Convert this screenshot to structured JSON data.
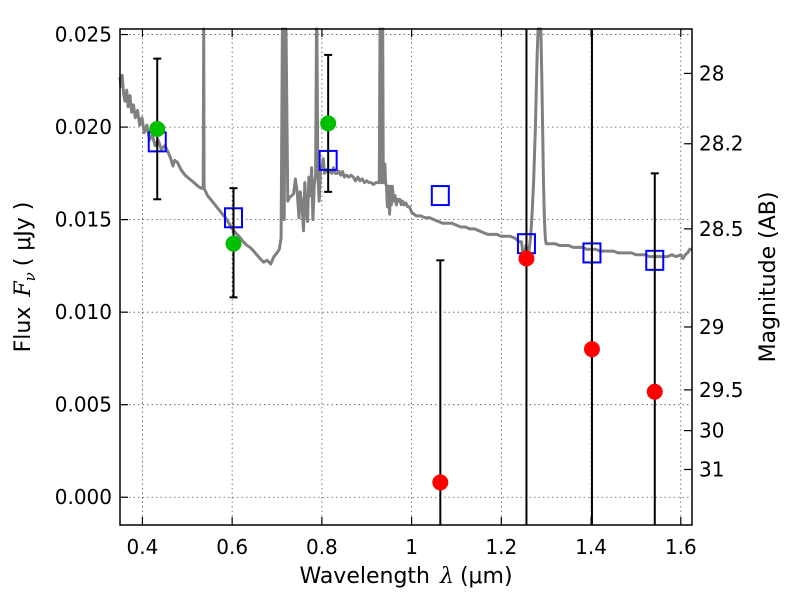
{
  "chart_data": {
    "type": "scatter",
    "xlabel": "Wavelength",
    "xlabel_symbol": "λ",
    "xlabel_unit": "(μm)",
    "ylabel": "Flux",
    "ylabel_symbol": "F",
    "ylabel_subscript": "ν",
    "ylabel_unit": "( μJy )",
    "ylabel_right": "Magnitude (AB)",
    "xlim": [
      0.35,
      1.625
    ],
    "ylim": [
      -0.0015,
      0.0253
    ],
    "grid": true,
    "x_ticks": [
      {
        "value": 0.4,
        "label": "0.4"
      },
      {
        "value": 0.6,
        "label": "0.6"
      },
      {
        "value": 0.8,
        "label": "0.8"
      },
      {
        "value": 1.0,
        "label": "1"
      },
      {
        "value": 1.2,
        "label": "1.2"
      },
      {
        "value": 1.4,
        "label": "1.4"
      },
      {
        "value": 1.6,
        "label": "1.6"
      }
    ],
    "y_ticks": [
      {
        "value": 0.0,
        "label": "0.000"
      },
      {
        "value": 0.005,
        "label": "0.005"
      },
      {
        "value": 0.01,
        "label": "0.010"
      },
      {
        "value": 0.015,
        "label": "0.015"
      },
      {
        "value": 0.02,
        "label": "0.020"
      },
      {
        "value": 0.025,
        "label": "0.025"
      }
    ],
    "right_ticks": [
      {
        "flux": 0.0229,
        "label": "28"
      },
      {
        "flux": 0.0191,
        "label": "28.2"
      },
      {
        "flux": 0.0145,
        "label": "28.5"
      },
      {
        "flux": 0.0092,
        "label": "29"
      },
      {
        "flux": 0.0058,
        "label": "29.5"
      },
      {
        "flux": 0.0036,
        "label": "30"
      },
      {
        "flux": 0.0015,
        "label": "31"
      }
    ],
    "series": [
      {
        "kind": "sed_model",
        "color": "#808080",
        "points": [
          [
            0.35,
            0.0227
          ],
          [
            0.352,
            0.0222
          ],
          [
            0.355,
            0.0228
          ],
          [
            0.358,
            0.0218
          ],
          [
            0.361,
            0.0214
          ],
          [
            0.365,
            0.022
          ],
          [
            0.368,
            0.0211
          ],
          [
            0.372,
            0.0217
          ],
          [
            0.376,
            0.0208
          ],
          [
            0.38,
            0.0212
          ],
          [
            0.384,
            0.0205
          ],
          [
            0.389,
            0.0209
          ],
          [
            0.394,
            0.0201
          ],
          [
            0.399,
            0.0205
          ],
          [
            0.404,
            0.0197
          ],
          [
            0.41,
            0.0201
          ],
          [
            0.416,
            0.0193
          ],
          [
            0.422,
            0.0196
          ],
          [
            0.428,
            0.019
          ],
          [
            0.435,
            0.0193
          ],
          [
            0.442,
            0.0188
          ],
          [
            0.45,
            0.019
          ],
          [
            0.458,
            0.0186
          ],
          [
            0.463,
            0.0183
          ],
          [
            0.468,
            0.0179
          ],
          [
            0.472,
            0.0182
          ],
          [
            0.478,
            0.0181
          ],
          [
            0.486,
            0.0177
          ],
          [
            0.495,
            0.0174
          ],
          [
            0.505,
            0.0172
          ],
          [
            0.515,
            0.017
          ],
          [
            0.524,
            0.0168
          ],
          [
            0.531,
            0.0167
          ],
          [
            0.5355,
            0.0167
          ],
          [
            0.5365,
            0.0253
          ],
          [
            0.5375,
            0.0167
          ],
          [
            0.545,
            0.0163
          ],
          [
            0.555,
            0.016
          ],
          [
            0.565,
            0.0157
          ],
          [
            0.575,
            0.0154
          ],
          [
            0.585,
            0.0151
          ],
          [
            0.593,
            0.0148
          ],
          [
            0.6,
            0.0145
          ],
          [
            0.607,
            0.0143
          ],
          [
            0.615,
            0.0141
          ],
          [
            0.625,
            0.0138
          ],
          [
            0.633,
            0.0136
          ],
          [
            0.64,
            0.0135
          ],
          [
            0.648,
            0.0133
          ],
          [
            0.655,
            0.0131
          ],
          [
            0.662,
            0.0129
          ],
          [
            0.67,
            0.0127
          ],
          [
            0.678,
            0.0128
          ],
          [
            0.686,
            0.0126
          ],
          [
            0.693,
            0.013
          ],
          [
            0.7,
            0.0132
          ],
          [
            0.705,
            0.0134
          ],
          [
            0.709,
            0.014
          ],
          [
            0.712,
            0.0253
          ],
          [
            0.7135,
            0.0253
          ],
          [
            0.716,
            0.015
          ],
          [
            0.718,
            0.0253
          ],
          [
            0.72,
            0.0253
          ],
          [
            0.724,
            0.016
          ],
          [
            0.728,
            0.0162
          ],
          [
            0.733,
            0.0163
          ],
          [
            0.737,
            0.0164
          ],
          [
            0.741,
            0.0172
          ],
          [
            0.745,
            0.0165
          ],
          [
            0.749,
            0.0151
          ],
          [
            0.752,
            0.0165
          ],
          [
            0.756,
            0.0157
          ],
          [
            0.759,
            0.0144
          ],
          [
            0.762,
            0.017
          ],
          [
            0.765,
            0.0155
          ],
          [
            0.768,
            0.0149
          ],
          [
            0.771,
            0.0173
          ],
          [
            0.774,
            0.0163
          ],
          [
            0.777,
            0.0178
          ],
          [
            0.78,
            0.015
          ],
          [
            0.783,
            0.0169
          ],
          [
            0.786,
            0.0174
          ],
          [
            0.788,
            0.0253
          ],
          [
            0.789,
            0.0253
          ],
          [
            0.791,
            0.0176
          ],
          [
            0.794,
            0.016
          ],
          [
            0.797,
            0.0177
          ],
          [
            0.8,
            0.0178
          ],
          [
            0.803,
            0.0183
          ],
          [
            0.806,
            0.0175
          ],
          [
            0.81,
            0.0177
          ],
          [
            0.814,
            0.0176
          ],
          [
            0.818,
            0.0176
          ],
          [
            0.822,
            0.0175
          ],
          [
            0.826,
            0.0178
          ],
          [
            0.83,
            0.0175
          ],
          [
            0.834,
            0.0175
          ],
          [
            0.838,
            0.0176
          ],
          [
            0.842,
            0.0174
          ],
          [
            0.846,
            0.0176
          ],
          [
            0.85,
            0.0173
          ],
          [
            0.855,
            0.0174
          ],
          [
            0.86,
            0.0173
          ],
          [
            0.865,
            0.0174
          ],
          [
            0.87,
            0.0173
          ],
          [
            0.875,
            0.0171
          ],
          [
            0.88,
            0.0173
          ],
          [
            0.885,
            0.0171
          ],
          [
            0.89,
            0.0172
          ],
          [
            0.895,
            0.017
          ],
          [
            0.9,
            0.0171
          ],
          [
            0.905,
            0.017
          ],
          [
            0.91,
            0.017
          ],
          [
            0.915,
            0.0169
          ],
          [
            0.92,
            0.017
          ],
          [
            0.925,
            0.017
          ],
          [
            0.928,
            0.017
          ],
          [
            0.9295,
            0.0253
          ],
          [
            0.931,
            0.017
          ],
          [
            0.934,
            0.017
          ],
          [
            0.9355,
            0.0253
          ],
          [
            0.937,
            0.017
          ],
          [
            0.939,
            0.017
          ],
          [
            0.9405,
            0.018
          ],
          [
            0.942,
            0.017
          ],
          [
            0.944,
            0.0168
          ],
          [
            0.946,
            0.0157
          ],
          [
            0.948,
            0.0168
          ],
          [
            0.951,
            0.0153
          ],
          [
            0.953,
            0.0168
          ],
          [
            0.955,
            0.0158
          ],
          [
            0.957,
            0.0168
          ],
          [
            0.96,
            0.016
          ],
          [
            0.963,
            0.0163
          ],
          [
            0.966,
            0.0158
          ],
          [
            0.969,
            0.0161
          ],
          [
            0.971,
            0.016
          ],
          [
            0.974,
            0.0161
          ],
          [
            0.977,
            0.0158
          ],
          [
            0.98,
            0.016
          ],
          [
            0.983,
            0.0158
          ],
          [
            0.987,
            0.0159
          ],
          [
            0.991,
            0.0157
          ],
          [
            0.995,
            0.0157
          ],
          [
            1.0,
            0.0154
          ],
          [
            1.01,
            0.0152
          ],
          [
            1.02,
            0.0152
          ],
          [
            1.03,
            0.0151
          ],
          [
            1.04,
            0.0151
          ],
          [
            1.05,
            0.015
          ],
          [
            1.06,
            0.0149
          ],
          [
            1.07,
            0.0148
          ],
          [
            1.08,
            0.0148
          ],
          [
            1.09,
            0.0148
          ],
          [
            1.1,
            0.0147
          ],
          [
            1.11,
            0.0146
          ],
          [
            1.12,
            0.0146
          ],
          [
            1.13,
            0.0145
          ],
          [
            1.14,
            0.0145
          ],
          [
            1.15,
            0.0144
          ],
          [
            1.16,
            0.0143
          ],
          [
            1.17,
            0.0142
          ],
          [
            1.18,
            0.0142
          ],
          [
            1.19,
            0.0142
          ],
          [
            1.2,
            0.0141
          ],
          [
            1.21,
            0.0141
          ],
          [
            1.22,
            0.0141
          ],
          [
            1.23,
            0.014
          ],
          [
            1.24,
            0.0138
          ],
          [
            1.245,
            0.0138
          ],
          [
            1.25,
            0.0128
          ],
          [
            1.255,
            0.0136
          ],
          [
            1.26,
            0.013
          ],
          [
            1.265,
            0.014
          ],
          [
            1.268,
            0.015
          ],
          [
            1.27,
            0.016
          ],
          [
            1.272,
            0.017
          ],
          [
            1.274,
            0.0185
          ],
          [
            1.276,
            0.02
          ],
          [
            1.278,
            0.022
          ],
          [
            1.28,
            0.024
          ],
          [
            1.282,
            0.0253
          ],
          [
            1.288,
            0.0253
          ],
          [
            1.29,
            0.023
          ],
          [
            1.292,
            0.02
          ],
          [
            1.294,
            0.017
          ],
          [
            1.296,
            0.015
          ],
          [
            1.298,
            0.014
          ],
          [
            1.3,
            0.0137
          ],
          [
            1.31,
            0.0137
          ],
          [
            1.32,
            0.0137
          ],
          [
            1.33,
            0.0136
          ],
          [
            1.34,
            0.0136
          ],
          [
            1.35,
            0.0136
          ],
          [
            1.36,
            0.0135
          ],
          [
            1.37,
            0.0135
          ],
          [
            1.38,
            0.0135
          ],
          [
            1.39,
            0.0134
          ],
          [
            1.4,
            0.0134
          ],
          [
            1.41,
            0.0134
          ],
          [
            1.42,
            0.0133
          ],
          [
            1.43,
            0.0133
          ],
          [
            1.44,
            0.0133
          ],
          [
            1.45,
            0.0133
          ],
          [
            1.46,
            0.0132
          ],
          [
            1.47,
            0.0132
          ],
          [
            1.48,
            0.0132
          ],
          [
            1.49,
            0.0132
          ],
          [
            1.5,
            0.0131
          ],
          [
            1.51,
            0.0131
          ],
          [
            1.52,
            0.0131
          ],
          [
            1.53,
            0.013
          ],
          [
            1.54,
            0.013
          ],
          [
            1.55,
            0.013
          ],
          [
            1.56,
            0.013
          ],
          [
            1.57,
            0.013
          ],
          [
            1.58,
            0.0131
          ],
          [
            1.59,
            0.013
          ],
          [
            1.6,
            0.0131
          ],
          [
            1.605,
            0.0129
          ],
          [
            1.61,
            0.0131
          ],
          [
            1.615,
            0.0132
          ],
          [
            1.62,
            0.0134
          ],
          [
            1.625,
            0.0134
          ]
        ]
      },
      {
        "kind": "model_photometry",
        "marker": "open-square",
        "color": "#0000ff",
        "x": [
          0.433,
          0.603,
          0.814,
          1.064,
          1.256,
          1.402,
          1.542
        ],
        "y": [
          0.0192,
          0.0151,
          0.0182,
          0.0163,
          0.0137,
          0.0132,
          0.0128
        ]
      },
      {
        "kind": "detections",
        "marker": "filled-circle",
        "color": "#00bf00",
        "x": [
          0.433,
          0.603,
          0.814
        ],
        "y": [
          0.0199,
          0.0137,
          0.0202
        ],
        "err_low": [
          0.0161,
          0.0108,
          0.0165
        ],
        "err_high": [
          0.0237,
          0.0167,
          0.0239
        ]
      },
      {
        "kind": "upper_limits",
        "marker": "filled-circle",
        "color": "#ff0000",
        "x": [
          1.064,
          1.256,
          1.402,
          1.542
        ],
        "y": [
          0.0008,
          0.0129,
          0.008,
          0.0057
        ],
        "err_low": [
          -0.0015,
          -0.0015,
          -0.0015,
          -0.0015
        ],
        "err_high": [
          0.0128,
          0.0253,
          0.0253,
          0.0175
        ]
      }
    ]
  }
}
